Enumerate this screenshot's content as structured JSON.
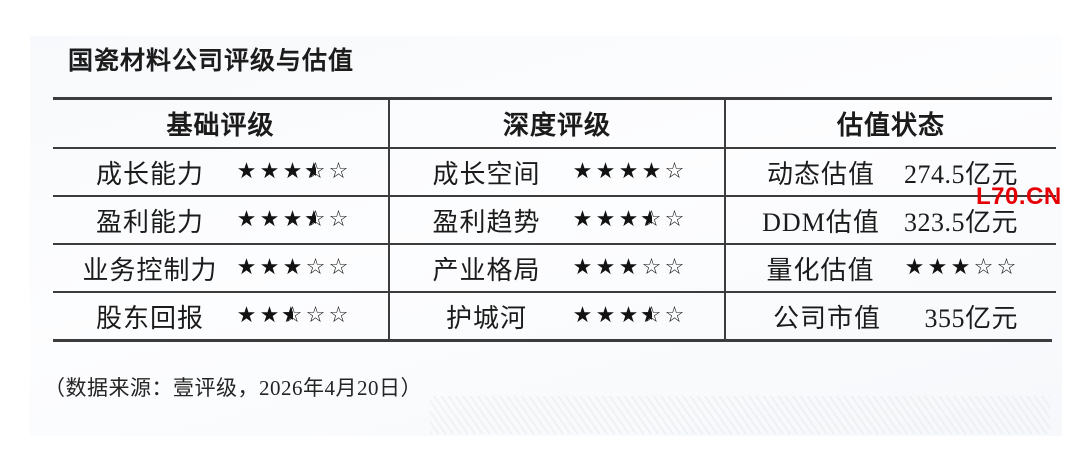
{
  "title": "国瓷材料公司评级与估值",
  "footnote": "（数据来源：壹评级，2026年4月20日）",
  "watermark": {
    "text": "L70.CN",
    "color": "#e60005"
  },
  "colors": {
    "table_line": "#3c3c3c",
    "text": "#1b1b1b",
    "star": "#121212",
    "watermark_red": "#e60005"
  },
  "table": {
    "columns": [
      {
        "header": "基础评级",
        "rows": [
          {
            "label": "成长能力",
            "rating": 3.5
          },
          {
            "label": "盈利能力",
            "rating": 3.5
          },
          {
            "label": "业务控制力",
            "rating": 3
          },
          {
            "label": "股东回报",
            "rating": 2.5
          }
        ]
      },
      {
        "header": "深度评级",
        "rows": [
          {
            "label": "成长空间",
            "rating": 4
          },
          {
            "label": "盈利趋势",
            "rating": 3.5
          },
          {
            "label": "产业格局",
            "rating": 3
          },
          {
            "label": "护城河",
            "rating": 3.5
          }
        ]
      },
      {
        "header": "估值状态",
        "rows": [
          {
            "label": "动态估值",
            "value": "274.5亿元"
          },
          {
            "label": "DDM估值",
            "value": "323.5亿元"
          },
          {
            "label": "量化估值",
            "rating": 3
          },
          {
            "label": "公司市值",
            "value": "355亿元"
          }
        ]
      }
    ]
  }
}
